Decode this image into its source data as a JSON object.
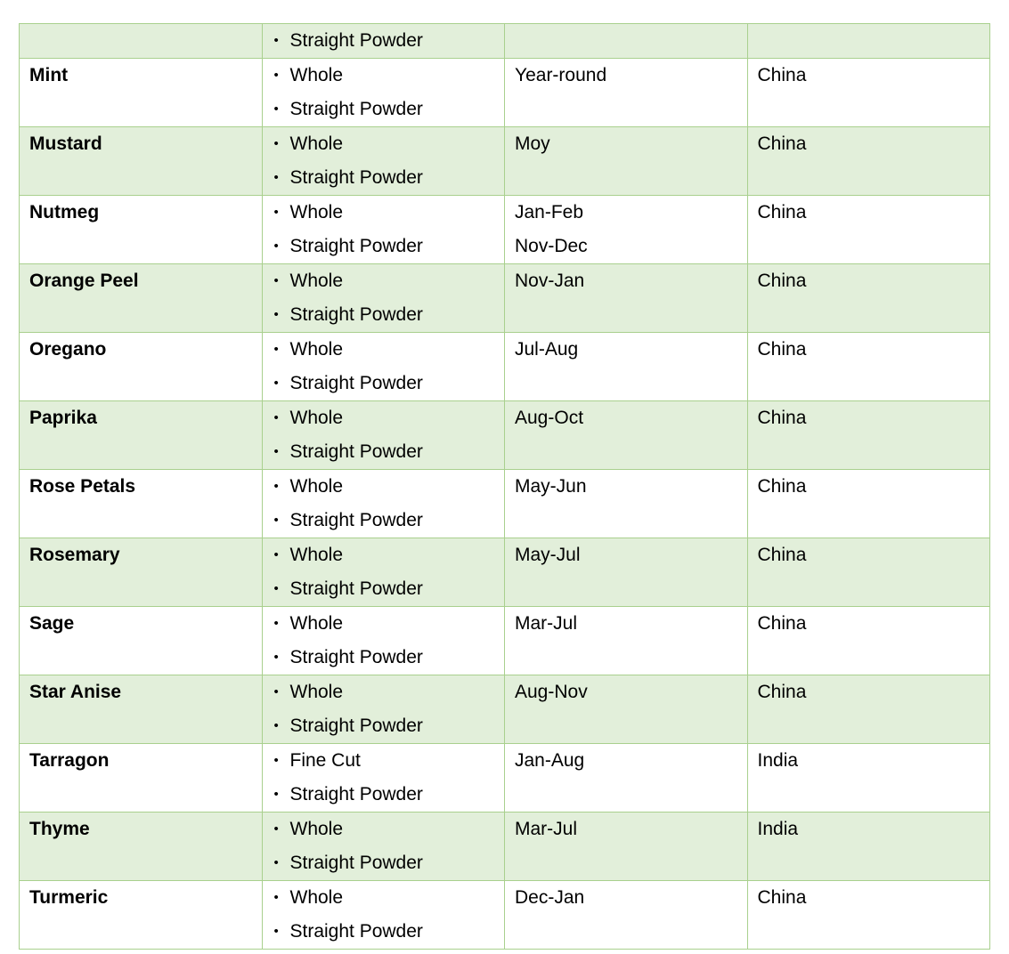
{
  "rows": [
    {
      "name": "",
      "forms": [
        "Straight Powder"
      ],
      "season": [],
      "origin": ""
    },
    {
      "name": "Mint",
      "forms": [
        "Whole",
        "Straight Powder"
      ],
      "season": [
        "Year-round"
      ],
      "origin": "China"
    },
    {
      "name": "Mustard",
      "forms": [
        "Whole",
        "Straight Powder"
      ],
      "season": [
        "Moy"
      ],
      "origin": "China"
    },
    {
      "name": "Nutmeg",
      "forms": [
        "Whole",
        "Straight Powder"
      ],
      "season": [
        "Jan-Feb",
        "Nov-Dec"
      ],
      "origin": "China"
    },
    {
      "name": "Orange Peel",
      "forms": [
        "Whole",
        "Straight Powder"
      ],
      "season": [
        "Nov-Jan"
      ],
      "origin": "China"
    },
    {
      "name": "Oregano",
      "forms": [
        "Whole",
        "Straight Powder"
      ],
      "season": [
        "Jul-Aug"
      ],
      "origin": "China"
    },
    {
      "name": "Paprika",
      "forms": [
        "Whole",
        "Straight Powder"
      ],
      "season": [
        "Aug-Oct"
      ],
      "origin": "China"
    },
    {
      "name": "Rose Petals",
      "forms": [
        "Whole",
        "Straight Powder"
      ],
      "season": [
        "May-Jun"
      ],
      "origin": "China"
    },
    {
      "name": "Rosemary",
      "forms": [
        "Whole",
        "Straight Powder"
      ],
      "season": [
        "May-Jul"
      ],
      "origin": "China"
    },
    {
      "name": "Sage",
      "forms": [
        "Whole",
        "Straight Powder"
      ],
      "season": [
        "Mar-Jul"
      ],
      "origin": "China"
    },
    {
      "name": "Star Anise",
      "forms": [
        "Whole",
        "Straight Powder"
      ],
      "season": [
        "Aug-Nov"
      ],
      "origin": "China"
    },
    {
      "name": "Tarragon",
      "forms": [
        "Fine Cut",
        "Straight Powder"
      ],
      "season": [
        "Jan-Aug"
      ],
      "origin": "India"
    },
    {
      "name": "Thyme",
      "forms": [
        "Whole",
        "Straight Powder"
      ],
      "season": [
        "Mar-Jul"
      ],
      "origin": "India"
    },
    {
      "name": "Turmeric",
      "forms": [
        "Whole",
        "Straight Powder"
      ],
      "season": [
        "Dec-Jan"
      ],
      "origin": "China"
    }
  ],
  "colors": {
    "alt_row": "#e2efda",
    "border": "#a9d08e"
  }
}
